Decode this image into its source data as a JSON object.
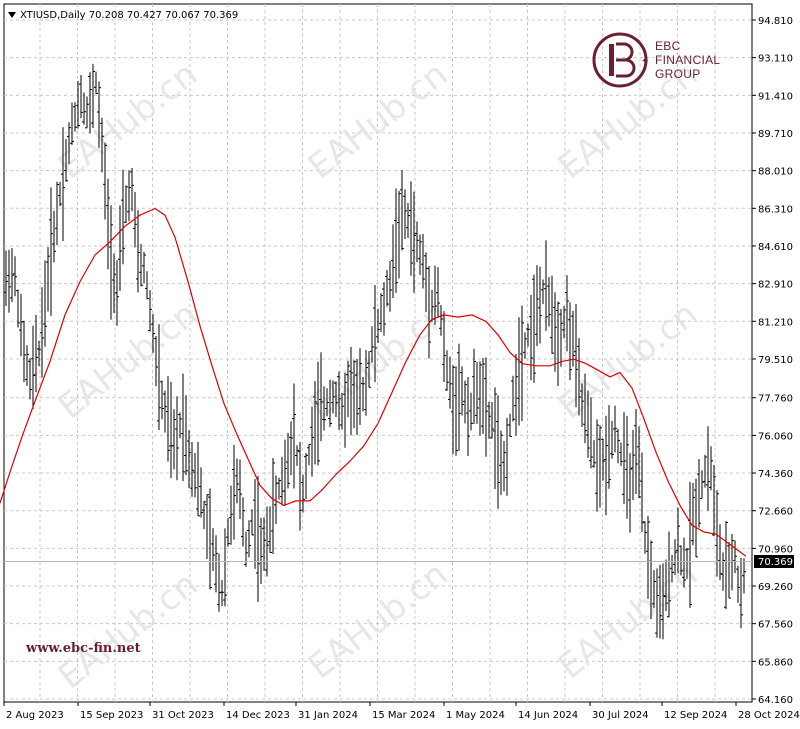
{
  "chart_data": {
    "type": "ohlc",
    "title": "XTIUSD,Daily  70.208 70.427 70.067 70.369",
    "symbol": "XTIUSD",
    "timeframe": "Daily",
    "last_price_label": "70.369",
    "last_price": 70.369,
    "y_ticks": [
      "94.810",
      "93.110",
      "91.410",
      "89.710",
      "88.010",
      "86.310",
      "84.610",
      "82.910",
      "81.210",
      "79.510",
      "77.760",
      "76.060",
      "74.360",
      "72.660",
      "70.960",
      "69.260",
      "67.560",
      "65.860",
      "64.160"
    ],
    "ylim": [
      64.16,
      94.81
    ],
    "x_ticks": [
      "2 Aug 2023",
      "15 Sep 2023",
      "31 Oct 2023",
      "14 Dec 2023",
      "31 Jan 2024",
      "15 Mar 2024",
      "1 May 2024",
      "14 Jun 2024",
      "30 Jul 2024",
      "12 Sep 2024",
      "28 Oct 2024"
    ],
    "grid": true,
    "bar_color": "#000000",
    "ma_color": "#e00000",
    "grid_color": "#c8c8c8",
    "price_path": [
      [
        0,
        81.2
      ],
      [
        8,
        83.5
      ],
      [
        16,
        83.0
      ],
      [
        22,
        80.2
      ],
      [
        30,
        78.5
      ],
      [
        40,
        80.0
      ],
      [
        50,
        84.0
      ],
      [
        60,
        87.0
      ],
      [
        70,
        89.5
      ],
      [
        80,
        91.5
      ],
      [
        88,
        90.5
      ],
      [
        96,
        92.0
      ],
      [
        104,
        88.0
      ],
      [
        110,
        84.5
      ],
      [
        117,
        82.5
      ],
      [
        124,
        86.0
      ],
      [
        131,
        87.5
      ],
      [
        138,
        84.0
      ],
      [
        145,
        83.5
      ],
      [
        152,
        81.0
      ],
      [
        160,
        78.0
      ],
      [
        168,
        76.5
      ],
      [
        175,
        75.5
      ],
      [
        182,
        77.0
      ],
      [
        190,
        75.0
      ],
      [
        198,
        74.0
      ],
      [
        206,
        72.0
      ],
      [
        214,
        70.5
      ],
      [
        222,
        69.0
      ],
      [
        230,
        72.5
      ],
      [
        238,
        74.0
      ],
      [
        246,
        71.0
      ],
      [
        254,
        72.5
      ],
      [
        262,
        70.5
      ],
      [
        270,
        72.0
      ],
      [
        278,
        73.5
      ],
      [
        286,
        74.5
      ],
      [
        294,
        76.5
      ],
      [
        302,
        73.0
      ],
      [
        310,
        75.5
      ],
      [
        318,
        77.0
      ],
      [
        326,
        77.5
      ],
      [
        334,
        78.0
      ],
      [
        342,
        77.0
      ],
      [
        350,
        78.5
      ],
      [
        358,
        77.5
      ],
      [
        366,
        78.5
      ],
      [
        374,
        80.5
      ],
      [
        382,
        81.5
      ],
      [
        390,
        83.0
      ],
      [
        398,
        85.5
      ],
      [
        406,
        86.0
      ],
      [
        414,
        85.0
      ],
      [
        422,
        84.0
      ],
      [
        430,
        82.0
      ],
      [
        438,
        82.5
      ],
      [
        446,
        79.0
      ],
      [
        454,
        77.5
      ],
      [
        462,
        78.0
      ],
      [
        470,
        77.0
      ],
      [
        478,
        78.5
      ],
      [
        486,
        77.0
      ],
      [
        494,
        76.5
      ],
      [
        502,
        74.0
      ],
      [
        510,
        76.5
      ],
      [
        518,
        79.0
      ],
      [
        526,
        80.5
      ],
      [
        534,
        81.0
      ],
      [
        542,
        82.5
      ],
      [
        550,
        82.0
      ],
      [
        558,
        80.5
      ],
      [
        566,
        81.5
      ],
      [
        574,
        80.0
      ],
      [
        582,
        77.5
      ],
      [
        590,
        76.0
      ],
      [
        598,
        74.5
      ],
      [
        606,
        75.0
      ],
      [
        614,
        76.5
      ],
      [
        622,
        75.0
      ],
      [
        630,
        74.0
      ],
      [
        638,
        75.0
      ],
      [
        646,
        71.0
      ],
      [
        654,
        69.0
      ],
      [
        662,
        68.0
      ],
      [
        670,
        70.0
      ],
      [
        678,
        71.0
      ],
      [
        686,
        70.0
      ],
      [
        694,
        72.5
      ],
      [
        702,
        74.0
      ],
      [
        710,
        75.0
      ],
      [
        716,
        72.0
      ],
      [
        722,
        70.0
      ],
      [
        728,
        69.5
      ],
      [
        734,
        71.0
      ],
      [
        740,
        68.5
      ],
      [
        746,
        70.4
      ]
    ],
    "ma_path": [
      [
        0,
        73.0
      ],
      [
        10,
        74.4
      ],
      [
        22,
        76.0
      ],
      [
        35,
        77.6
      ],
      [
        50,
        79.4
      ],
      [
        65,
        81.5
      ],
      [
        80,
        83.0
      ],
      [
        95,
        84.2
      ],
      [
        110,
        84.8
      ],
      [
        125,
        85.5
      ],
      [
        140,
        86.0
      ],
      [
        155,
        86.3
      ],
      [
        165,
        86.0
      ],
      [
        175,
        85.0
      ],
      [
        188,
        83.0
      ],
      [
        200,
        81.0
      ],
      [
        212,
        79.2
      ],
      [
        224,
        77.5
      ],
      [
        236,
        76.2
      ],
      [
        248,
        75.0
      ],
      [
        260,
        73.8
      ],
      [
        272,
        73.2
      ],
      [
        284,
        72.9
      ],
      [
        296,
        73.1
      ],
      [
        310,
        73.1
      ],
      [
        322,
        73.6
      ],
      [
        336,
        74.3
      ],
      [
        350,
        74.9
      ],
      [
        364,
        75.6
      ],
      [
        378,
        76.6
      ],
      [
        392,
        78.0
      ],
      [
        406,
        79.4
      ],
      [
        420,
        80.6
      ],
      [
        432,
        81.3
      ],
      [
        444,
        81.5
      ],
      [
        458,
        81.4
      ],
      [
        472,
        81.5
      ],
      [
        486,
        81.2
      ],
      [
        498,
        80.6
      ],
      [
        510,
        79.8
      ],
      [
        522,
        79.3
      ],
      [
        536,
        79.2
      ],
      [
        550,
        79.2
      ],
      [
        562,
        79.4
      ],
      [
        574,
        79.5
      ],
      [
        586,
        79.3
      ],
      [
        598,
        79.0
      ],
      [
        610,
        78.7
      ],
      [
        620,
        78.9
      ],
      [
        632,
        78.2
      ],
      [
        644,
        76.8
      ],
      [
        656,
        75.3
      ],
      [
        668,
        74.0
      ],
      [
        680,
        72.9
      ],
      [
        692,
        72.0
      ],
      [
        704,
        71.7
      ],
      [
        716,
        71.6
      ],
      [
        728,
        71.2
      ],
      [
        740,
        70.8
      ],
      [
        746,
        70.6
      ]
    ]
  },
  "logo": {
    "line1": "EBC",
    "line2": "FINANCIAL",
    "line3": "GROUP",
    "color": "#6b2030"
  },
  "website": "www.ebc-fin.net",
  "watermark": "EAHub.cn"
}
